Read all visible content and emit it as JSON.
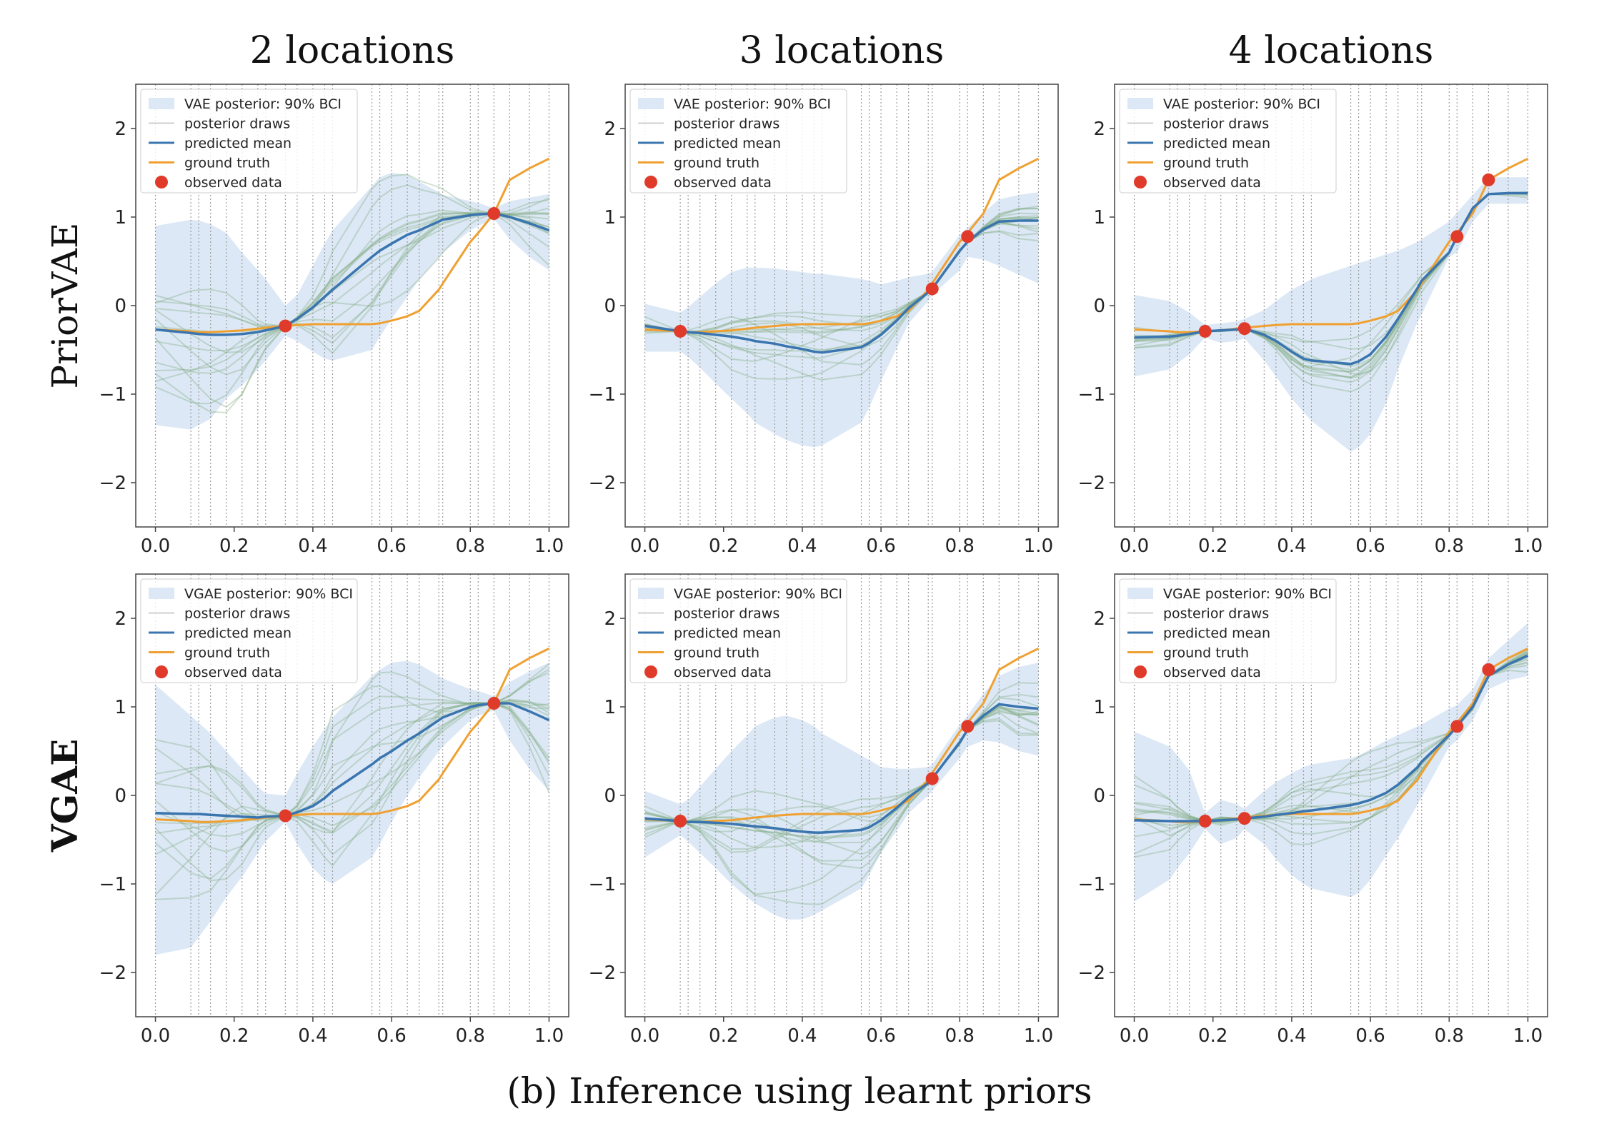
{
  "figure": {
    "col_titles": [
      "2 locations",
      "3 locations",
      "4 locations"
    ],
    "row_titles": [
      "PriorVAE",
      "VGAE"
    ],
    "caption": "(b) Inference using learnt priors"
  },
  "colors": {
    "band": "#dce8f5",
    "draws": "#7fa87f",
    "mean": "#3a75b0",
    "truth": "#f0a030",
    "observed": "#e03a2a",
    "grid": "#9a9a9a"
  },
  "chart_data": {
    "type": "line",
    "xlim": [
      -0.05,
      1.05
    ],
    "ylim": [
      -2.5,
      2.5
    ],
    "xticks": [
      "0.0",
      "0.2",
      "0.4",
      "0.6",
      "0.8",
      "1.0"
    ],
    "yticks": [
      "−2",
      "−1",
      "0",
      "1",
      "2"
    ],
    "x": [
      0.0,
      0.09,
      0.11,
      0.14,
      0.18,
      0.22,
      0.26,
      0.28,
      0.33,
      0.36,
      0.4,
      0.43,
      0.45,
      0.55,
      0.57,
      0.6,
      0.64,
      0.67,
      0.72,
      0.73,
      0.8,
      0.82,
      0.86,
      0.9,
      0.95,
      1.0
    ],
    "ground_truth": [
      -0.27,
      -0.29,
      -0.3,
      -0.3,
      -0.29,
      -0.28,
      -0.26,
      -0.25,
      -0.23,
      -0.22,
      -0.21,
      -0.21,
      -0.21,
      -0.21,
      -0.2,
      -0.17,
      -0.12,
      -0.06,
      0.18,
      0.25,
      0.72,
      0.82,
      1.04,
      1.42,
      1.55,
      1.66
    ],
    "panels": [
      {
        "row": 0,
        "col": 0,
        "legend": [
          "VAE posterior: 90% BCI",
          "posterior draws",
          "predicted mean",
          "ground truth",
          "observed data"
        ],
        "observed": [
          {
            "x": 0.33,
            "y": -0.23
          },
          {
            "x": 0.86,
            "y": 1.04
          }
        ],
        "mean": [
          -0.27,
          -0.31,
          -0.32,
          -0.33,
          -0.33,
          -0.32,
          -0.3,
          -0.28,
          -0.23,
          -0.15,
          -0.02,
          0.1,
          0.18,
          0.55,
          0.62,
          0.7,
          0.8,
          0.85,
          0.95,
          0.97,
          1.02,
          1.03,
          1.04,
          1.0,
          0.93,
          0.85
        ],
        "band_upper": [
          0.9,
          0.97,
          0.96,
          0.92,
          0.82,
          0.6,
          0.4,
          0.3,
          0.0,
          0.12,
          0.45,
          0.7,
          0.85,
          1.35,
          1.45,
          1.5,
          1.48,
          1.4,
          1.28,
          1.25,
          1.18,
          1.16,
          1.1,
          1.18,
          1.22,
          1.26
        ],
        "band_lower": [
          -1.35,
          -1.4,
          -1.35,
          -1.28,
          -1.05,
          -0.9,
          -0.72,
          -0.62,
          -0.34,
          -0.4,
          -0.52,
          -0.6,
          -0.62,
          -0.5,
          -0.35,
          -0.15,
          0.1,
          0.3,
          0.55,
          0.6,
          0.85,
          0.9,
          0.98,
          0.75,
          0.55,
          0.4
        ],
        "spread": 0.9
      },
      {
        "row": 0,
        "col": 1,
        "legend": [
          "VAE posterior: 90% BCI",
          "posterior draws",
          "predicted mean",
          "ground truth",
          "observed data"
        ],
        "observed": [
          {
            "x": 0.09,
            "y": -0.29
          },
          {
            "x": 0.73,
            "y": 0.19
          },
          {
            "x": 0.82,
            "y": 0.78
          }
        ],
        "mean": [
          -0.23,
          -0.29,
          -0.3,
          -0.31,
          -0.33,
          -0.35,
          -0.38,
          -0.4,
          -0.43,
          -0.46,
          -0.49,
          -0.52,
          -0.53,
          -0.47,
          -0.42,
          -0.33,
          -0.17,
          -0.03,
          0.15,
          0.19,
          0.62,
          0.72,
          0.86,
          0.95,
          0.96,
          0.96
        ],
        "band_upper": [
          0.02,
          -0.08,
          -0.02,
          0.1,
          0.25,
          0.38,
          0.43,
          0.43,
          0.42,
          0.4,
          0.38,
          0.36,
          0.36,
          0.3,
          0.28,
          0.24,
          0.28,
          0.32,
          0.36,
          0.38,
          0.8,
          0.88,
          1.05,
          1.2,
          1.25,
          1.28
        ],
        "band_lower": [
          -0.52,
          -0.52,
          -0.58,
          -0.7,
          -0.88,
          -1.05,
          -1.22,
          -1.32,
          -1.45,
          -1.52,
          -1.58,
          -1.6,
          -1.58,
          -1.32,
          -1.15,
          -0.85,
          -0.48,
          -0.2,
          0.05,
          0.12,
          0.4,
          0.55,
          0.52,
          0.45,
          0.35,
          0.25
        ],
        "spread": 0.55
      },
      {
        "row": 0,
        "col": 2,
        "legend": [
          "VAE posterior: 90% BCI",
          "posterior draws",
          "predicted mean",
          "ground truth",
          "observed data"
        ],
        "observed": [
          {
            "x": 0.18,
            "y": -0.29
          },
          {
            "x": 0.28,
            "y": -0.26
          },
          {
            "x": 0.82,
            "y": 0.78
          },
          {
            "x": 0.9,
            "y": 1.42
          }
        ],
        "mean": [
          -0.36,
          -0.35,
          -0.34,
          -0.32,
          -0.29,
          -0.28,
          -0.27,
          -0.26,
          -0.33,
          -0.4,
          -0.52,
          -0.6,
          -0.62,
          -0.66,
          -0.63,
          -0.55,
          -0.35,
          -0.15,
          0.2,
          0.28,
          0.6,
          0.78,
          1.1,
          1.26,
          1.27,
          1.27
        ],
        "band_upper": [
          0.12,
          0.05,
          0.0,
          -0.08,
          -0.22,
          -0.2,
          -0.18,
          -0.15,
          -0.05,
          0.05,
          0.18,
          0.25,
          0.3,
          0.45,
          0.48,
          0.52,
          0.58,
          0.62,
          0.72,
          0.75,
          0.95,
          1.05,
          1.25,
          1.45,
          1.45,
          1.45
        ],
        "band_lower": [
          -0.8,
          -0.72,
          -0.65,
          -0.55,
          -0.36,
          -0.42,
          -0.4,
          -0.37,
          -0.62,
          -0.8,
          -1.05,
          -1.2,
          -1.3,
          -1.65,
          -1.6,
          -1.45,
          -1.1,
          -0.72,
          -0.18,
          -0.1,
          0.55,
          0.6,
          0.95,
          1.15,
          1.15,
          1.15
        ],
        "spread": 0.35
      },
      {
        "row": 1,
        "col": 0,
        "legend": [
          "VGAE posterior: 90% BCI",
          "posterior draws",
          "predicted mean",
          "ground truth",
          "observed data"
        ],
        "observed": [
          {
            "x": 0.33,
            "y": -0.23
          },
          {
            "x": 0.86,
            "y": 1.04
          }
        ],
        "mean": [
          -0.2,
          -0.21,
          -0.21,
          -0.22,
          -0.23,
          -0.24,
          -0.25,
          -0.24,
          -0.23,
          -0.19,
          -0.12,
          -0.03,
          0.05,
          0.35,
          0.42,
          0.5,
          0.62,
          0.7,
          0.85,
          0.88,
          1.0,
          1.02,
          1.04,
          1.04,
          0.95,
          0.85
        ],
        "band_upper": [
          1.25,
          0.9,
          0.82,
          0.7,
          0.5,
          0.3,
          0.1,
          0.02,
          0.0,
          0.25,
          0.55,
          0.75,
          0.88,
          1.35,
          1.42,
          1.5,
          1.52,
          1.48,
          1.35,
          1.32,
          1.2,
          1.18,
          1.12,
          1.28,
          1.4,
          1.5
        ],
        "band_lower": [
          -1.8,
          -1.72,
          -1.6,
          -1.42,
          -1.15,
          -0.92,
          -0.65,
          -0.52,
          -0.3,
          -0.55,
          -0.82,
          -0.95,
          -1.0,
          -0.7,
          -0.55,
          -0.3,
          0.0,
          0.2,
          0.5,
          0.55,
          0.85,
          0.9,
          0.96,
          0.62,
          0.3,
          0.05
        ],
        "spread": 1.15
      },
      {
        "row": 1,
        "col": 1,
        "legend": [
          "VGAE posterior: 90% BCI",
          "posterior draws",
          "predicted mean",
          "ground truth",
          "observed data"
        ],
        "observed": [
          {
            "x": 0.09,
            "y": -0.29
          },
          {
            "x": 0.73,
            "y": 0.19
          },
          {
            "x": 0.82,
            "y": 0.78
          }
        ],
        "mean": [
          -0.26,
          -0.29,
          -0.3,
          -0.3,
          -0.31,
          -0.32,
          -0.34,
          -0.35,
          -0.37,
          -0.39,
          -0.41,
          -0.42,
          -0.42,
          -0.39,
          -0.36,
          -0.28,
          -0.14,
          -0.02,
          0.14,
          0.19,
          0.6,
          0.74,
          0.9,
          1.03,
          1.0,
          0.98
        ],
        "band_upper": [
          0.05,
          -0.1,
          -0.05,
          0.1,
          0.3,
          0.5,
          0.68,
          0.78,
          0.88,
          0.9,
          0.85,
          0.78,
          0.7,
          0.45,
          0.4,
          0.32,
          0.3,
          0.3,
          0.32,
          0.35,
          0.8,
          0.9,
          1.15,
          1.35,
          1.45,
          1.5
        ],
        "band_lower": [
          -0.7,
          -0.45,
          -0.52,
          -0.65,
          -0.82,
          -1.0,
          -1.15,
          -1.22,
          -1.35,
          -1.4,
          -1.4,
          -1.35,
          -1.3,
          -1.05,
          -0.9,
          -0.65,
          -0.4,
          -0.2,
          0.0,
          0.05,
          0.42,
          0.55,
          0.62,
          0.6,
          0.5,
          0.45
        ],
        "spread": 0.75
      },
      {
        "row": 1,
        "col": 2,
        "legend": [
          "VGAE posterior: 90% BCI",
          "posterior draws",
          "predicted mean",
          "ground truth",
          "observed data"
        ],
        "observed": [
          {
            "x": 0.18,
            "y": -0.29
          },
          {
            "x": 0.28,
            "y": -0.26
          },
          {
            "x": 0.82,
            "y": 0.78
          },
          {
            "x": 0.9,
            "y": 1.42
          }
        ],
        "mean": [
          -0.28,
          -0.29,
          -0.29,
          -0.29,
          -0.29,
          -0.28,
          -0.27,
          -0.26,
          -0.24,
          -0.22,
          -0.2,
          -0.18,
          -0.17,
          -0.11,
          -0.09,
          -0.05,
          0.03,
          0.12,
          0.32,
          0.38,
          0.68,
          0.78,
          1.0,
          1.35,
          1.48,
          1.58
        ],
        "band_upper": [
          0.72,
          0.55,
          0.45,
          0.28,
          -0.2,
          -0.05,
          -0.1,
          -0.15,
          0.05,
          0.15,
          0.25,
          0.32,
          0.35,
          0.42,
          0.45,
          0.52,
          0.62,
          0.68,
          0.78,
          0.8,
          0.98,
          1.02,
          1.2,
          1.55,
          1.75,
          1.95
        ],
        "band_lower": [
          -1.2,
          -0.95,
          -0.82,
          -0.65,
          -0.38,
          -0.55,
          -0.48,
          -0.38,
          -0.55,
          -0.72,
          -0.9,
          -1.0,
          -1.05,
          -1.15,
          -1.1,
          -0.95,
          -0.68,
          -0.48,
          -0.1,
          -0.02,
          0.55,
          0.62,
          0.85,
          1.2,
          1.3,
          1.35
        ],
        "spread": 0.7
      }
    ]
  }
}
